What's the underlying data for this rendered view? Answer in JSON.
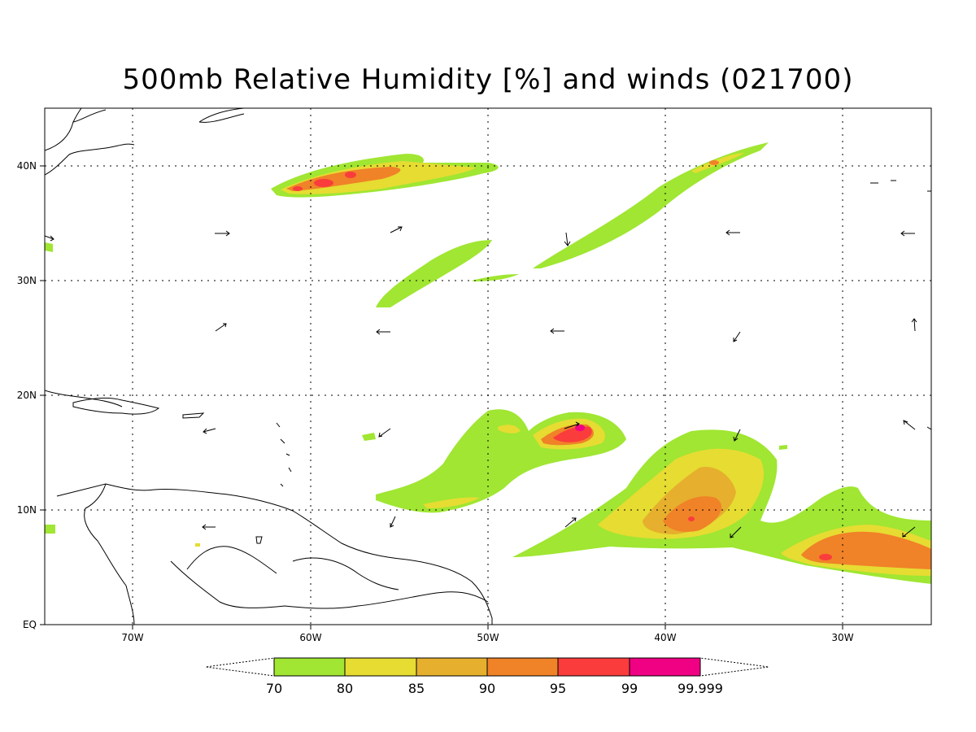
{
  "title": "500mb Relative Humidity [%] and winds (021700)",
  "axes": {
    "lon_labels": [
      "70W",
      "60W",
      "50W",
      "40W",
      "30W"
    ],
    "lat_labels": [
      "40N",
      "30N",
      "20N",
      "10N",
      "EQ"
    ],
    "lon_range": [
      -75,
      -25
    ],
    "lat_range": [
      0,
      45
    ],
    "grid": "dotted"
  },
  "colorbar": {
    "levels": [
      "70",
      "80",
      "85",
      "90",
      "95",
      "99",
      "99.999"
    ],
    "colors": [
      "#a0e632",
      "#e6dc32",
      "#e6af2d",
      "#f08228",
      "#fa3c3c",
      "#f00082"
    ]
  },
  "map_features": {
    "fill_colors": {
      "c70": "#a0e632",
      "c80": "#e6dc32",
      "c85": "#e6af2d",
      "c90": "#f08228",
      "c95": "#fa3c3c",
      "c99": "#f00082"
    },
    "coastline_color": "#000000"
  }
}
